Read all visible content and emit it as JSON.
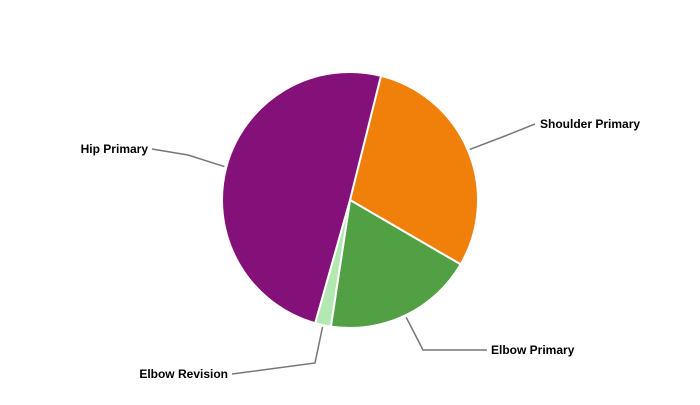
{
  "chart_data": {
    "type": "pie",
    "categories": [
      "Shoulder Primary",
      "Elbow Primary",
      "Elbow Revision",
      "Hip Primary"
    ],
    "values": [
      29.5,
      19,
      2,
      49.5
    ],
    "colors": [
      "#f0800a",
      "#52a044",
      "#b3e8b3",
      "#84107a"
    ],
    "start_angle_deg": 14,
    "direction": "clockwise",
    "legend": "none",
    "labels": "outside with leader lines"
  }
}
